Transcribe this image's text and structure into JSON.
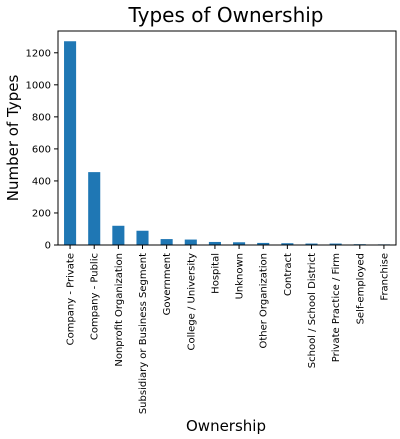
{
  "chart_data": {
    "type": "bar",
    "title": "Types of Ownership",
    "xlabel": "Ownership",
    "ylabel": "Number of Types",
    "categories": [
      "Company - Private",
      "Company - Public",
      "Nonprofit Organization",
      "Subsidiary or Business Segment",
      "Government",
      "College / University",
      "Hospital",
      "Unknown",
      "Other Organization",
      "Contract",
      "School / School District",
      "Private Practice / Firm",
      "Self-employed",
      "Franchise"
    ],
    "values": [
      1272,
      455,
      120,
      89,
      37,
      34,
      19,
      17,
      13,
      11,
      9,
      9,
      5,
      4
    ],
    "ylim": [
      0,
      1336
    ],
    "yticks": [
      0,
      200,
      400,
      600,
      800,
      1000,
      1200
    ],
    "grid": false,
    "bar_color": "#1f77b4"
  }
}
